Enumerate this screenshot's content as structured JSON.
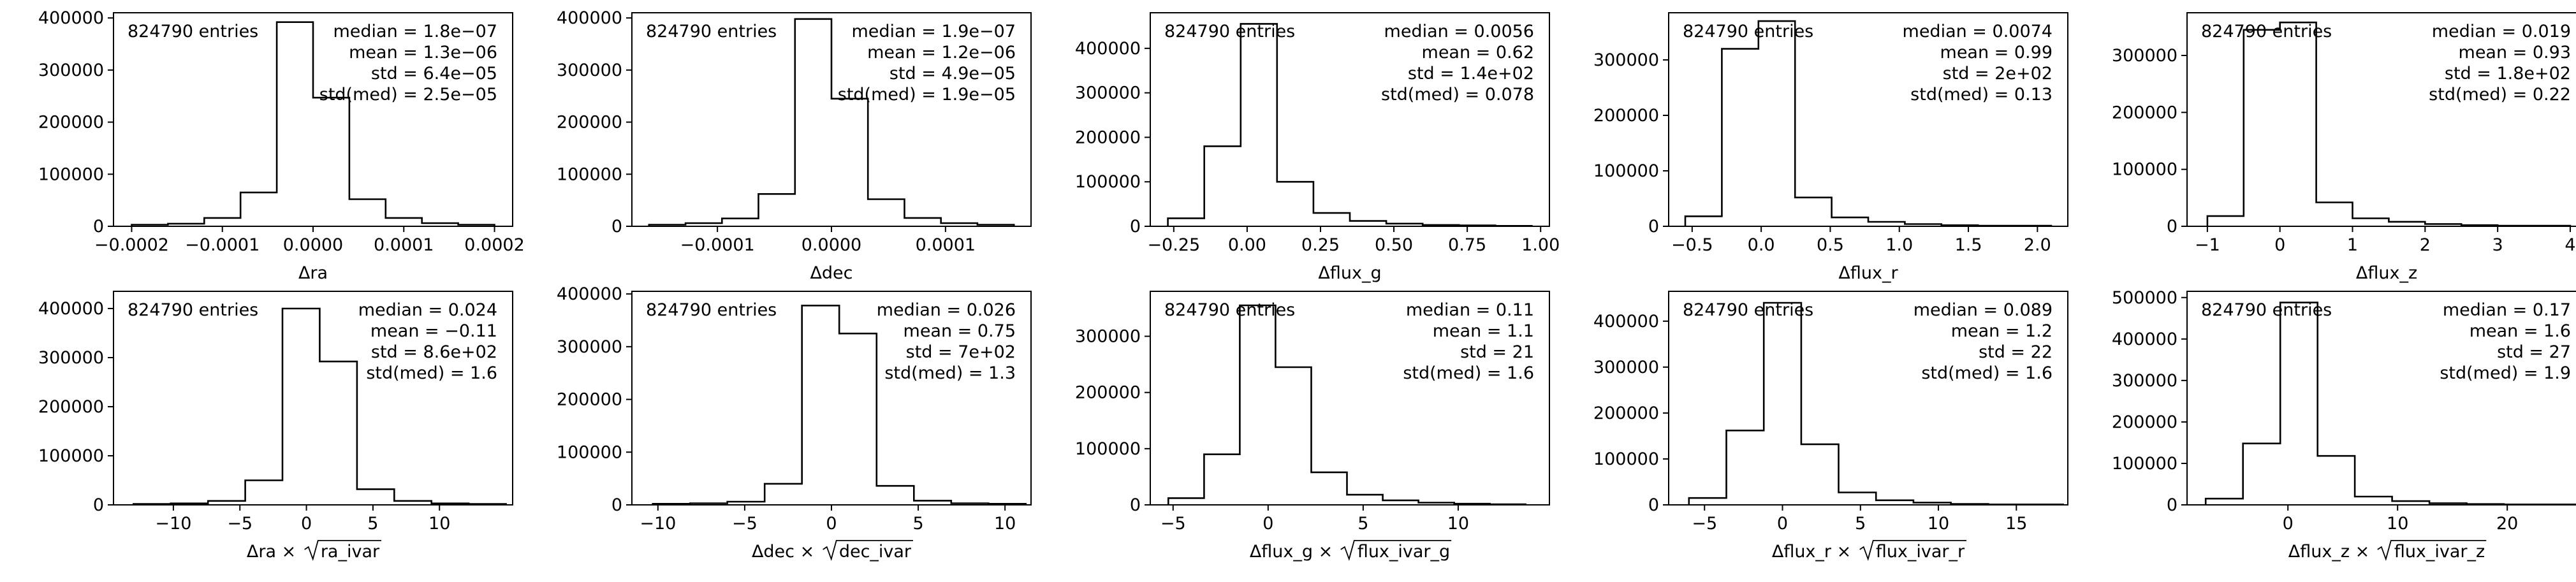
{
  "figure": {
    "background": "#ffffff",
    "line_color": "#000000"
  },
  "chart_data": [
    {
      "type": "histogram",
      "xlabel": "Δra",
      "entries_text": "824790 entries",
      "stats": [
        "median = 1.8e−07",
        "mean = 1.3e−06",
        "std = 6.4e−05",
        "std(med) = 2.5e−05"
      ],
      "xlim": [
        -0.00022,
        0.00022
      ],
      "ylim": [
        0,
        410000
      ],
      "xticks": [
        -0.0002,
        -0.0001,
        0.0,
        0.0001,
        0.0002
      ],
      "xtick_labels": [
        "−0.0002",
        "−0.0001",
        "0.0000",
        "0.0001",
        "0.0002"
      ],
      "yticks": [
        0,
        100000,
        200000,
        300000,
        400000
      ],
      "ytick_labels": [
        "0",
        "100000",
        "200000",
        "300000",
        "400000"
      ],
      "bin_edges": [
        -0.0002,
        -0.00016,
        -0.00012,
        -8e-05,
        -4e-05,
        0.0,
        4e-05,
        8e-05,
        0.00012,
        0.00016,
        0.0002
      ],
      "counts": [
        3000,
        5000,
        16000,
        65000,
        392000,
        247000,
        52000,
        16000,
        6000,
        3000
      ]
    },
    {
      "type": "histogram",
      "xlabel": "Δdec",
      "entries_text": "824790 entries",
      "stats": [
        "median = 1.9e−07",
        "mean = 1.2e−06",
        "std = 4.9e−05",
        "std(med) = 1.9e−05"
      ],
      "xlim": [
        -0.000175,
        0.000175
      ],
      "ylim": [
        0,
        410000
      ],
      "xticks": [
        -0.0001,
        0.0,
        0.0001
      ],
      "xtick_labels": [
        "−0.0001",
        "0.0000",
        "0.0001"
      ],
      "yticks": [
        0,
        100000,
        200000,
        300000,
        400000
      ],
      "ytick_labels": [
        "0",
        "100000",
        "200000",
        "300000",
        "400000"
      ],
      "bin_edges": [
        -0.00016,
        -0.000128,
        -9.6e-05,
        -6.4e-05,
        -3.2e-05,
        0.0,
        3.2e-05,
        6.4e-05,
        9.6e-05,
        0.000128,
        0.00016
      ],
      "counts": [
        3000,
        6000,
        15000,
        62000,
        398000,
        245000,
        52000,
        16000,
        6000,
        3000
      ]
    },
    {
      "type": "histogram",
      "xlabel": "Δflux_g",
      "entries_text": "824790 entries",
      "stats": [
        "median = 0.0056",
        "mean = 0.62",
        "std = 1.4e+02",
        "std(med) = 0.078"
      ],
      "xlim": [
        -0.33,
        1.03
      ],
      "ylim": [
        0,
        480000
      ],
      "xticks": [
        -0.25,
        0.0,
        0.25,
        0.5,
        0.75,
        1.0
      ],
      "xtick_labels": [
        "−0.25",
        "0.00",
        "0.25",
        "0.50",
        "0.75",
        "1.00"
      ],
      "yticks": [
        0,
        100000,
        200000,
        300000,
        400000
      ],
      "ytick_labels": [
        "0",
        "100000",
        "200000",
        "300000",
        "400000"
      ],
      "bin_edges": [
        -0.27,
        -0.146,
        -0.022,
        0.102,
        0.226,
        0.35,
        0.474,
        0.598,
        0.722,
        0.846,
        0.97
      ],
      "counts": [
        18000,
        180000,
        455000,
        100000,
        30000,
        12000,
        6000,
        3000,
        2000,
        1000
      ]
    },
    {
      "type": "histogram",
      "xlabel": "Δflux_r",
      "entries_text": "824790 entries",
      "stats": [
        "median = 0.0074",
        "mean = 0.99",
        "std = 2e+02",
        "std(med) = 0.13"
      ],
      "xlim": [
        -0.67,
        2.22
      ],
      "ylim": [
        0,
        385000
      ],
      "xticks": [
        -0.5,
        0.0,
        0.5,
        1.0,
        1.5,
        2.0
      ],
      "xtick_labels": [
        "−0.5",
        "0.0",
        "0.5",
        "1.0",
        "1.5",
        "2.0"
      ],
      "yticks": [
        0,
        100000,
        200000,
        300000
      ],
      "ytick_labels": [
        "0",
        "100000",
        "200000",
        "300000"
      ],
      "bin_edges": [
        -0.55,
        -0.285,
        -0.02,
        0.245,
        0.51,
        0.775,
        1.04,
        1.305,
        1.57,
        1.835,
        2.1
      ],
      "counts": [
        18000,
        320000,
        370000,
        52000,
        16000,
        8000,
        4000,
        2000,
        1000,
        1000
      ]
    },
    {
      "type": "histogram",
      "xlabel": "Δflux_z",
      "entries_text": "824790 entries",
      "stats": [
        "median = 0.019",
        "mean = 0.93",
        "std = 1.8e+02",
        "std(med) = 0.22"
      ],
      "xlim": [
        -1.28,
        4.22
      ],
      "ylim": [
        0,
        375000
      ],
      "xticks": [
        -1,
        0,
        1,
        2,
        3,
        4
      ],
      "xtick_labels": [
        "−1",
        "0",
        "1",
        "2",
        "3",
        "4"
      ],
      "yticks": [
        0,
        100000,
        200000,
        300000
      ],
      "ytick_labels": [
        "0",
        "100000",
        "200000",
        "300000"
      ],
      "bin_edges": [
        -1.0,
        -0.5,
        0.0,
        0.5,
        1.0,
        1.5,
        2.0,
        2.5,
        3.0,
        3.5,
        4.0
      ],
      "counts": [
        18000,
        345000,
        358000,
        42000,
        14000,
        8000,
        4000,
        2000,
        1000,
        1000
      ]
    },
    {
      "type": "histogram",
      "xlabel": "Δra × √ra_ivar",
      "xlabel_parts": [
        "Δra × ",
        "ra_ivar"
      ],
      "entries_text": "824790 entries",
      "stats": [
        "median = 0.024",
        "mean = −0.11",
        "std = 8.6e+02",
        "std(med) = 1.6"
      ],
      "xlim": [
        -14.5,
        15.5
      ],
      "ylim": [
        0,
        435000
      ],
      "xticks": [
        -10,
        -5,
        0,
        5,
        10
      ],
      "xtick_labels": [
        "−10",
        "−5",
        "0",
        "5",
        "10"
      ],
      "yticks": [
        0,
        100000,
        200000,
        300000,
        400000
      ],
      "ytick_labels": [
        "0",
        "100000",
        "200000",
        "300000",
        "400000"
      ],
      "bin_edges": [
        -13.0,
        -10.2,
        -7.4,
        -4.6,
        -1.8,
        1.0,
        3.8,
        6.6,
        9.4,
        12.2,
        15.0
      ],
      "counts": [
        2000,
        3000,
        8000,
        50000,
        400000,
        292000,
        32000,
        8000,
        3000,
        2000
      ]
    },
    {
      "type": "histogram",
      "xlabel": "Δdec × √dec_ivar",
      "xlabel_parts": [
        "Δdec × ",
        "dec_ivar"
      ],
      "entries_text": "824790 entries",
      "stats": [
        "median = 0.026",
        "mean = 0.75",
        "std = 7e+02",
        "std(med) = 1.3"
      ],
      "xlim": [
        -11.5,
        11.5
      ],
      "ylim": [
        0,
        405000
      ],
      "xticks": [
        -10,
        -5,
        0,
        5,
        10
      ],
      "xtick_labels": [
        "−10",
        "−5",
        "0",
        "5",
        "10"
      ],
      "yticks": [
        0,
        100000,
        200000,
        300000,
        400000
      ],
      "ytick_labels": [
        "0",
        "100000",
        "200000",
        "300000",
        "400000"
      ],
      "bin_edges": [
        -10.3,
        -8.15,
        -6.0,
        -3.85,
        -1.7,
        0.45,
        2.6,
        4.75,
        6.9,
        9.05,
        11.2
      ],
      "counts": [
        2000,
        3000,
        6000,
        40000,
        378000,
        325000,
        36000,
        8000,
        3000,
        2000
      ]
    },
    {
      "type": "histogram",
      "xlabel": "Δflux_g × √flux_ivar_g",
      "xlabel_parts": [
        "Δflux_g × ",
        "flux_ivar_g"
      ],
      "entries_text": "824790 entries",
      "stats": [
        "median = 0.11",
        "mean = 1.1",
        "std = 21",
        "std(med) = 1.6"
      ],
      "xlim": [
        -6.2,
        14.8
      ],
      "ylim": [
        0,
        380000
      ],
      "xticks": [
        -5,
        0,
        5,
        10
      ],
      "xtick_labels": [
        "−5",
        "0",
        "5",
        "10"
      ],
      "yticks": [
        0,
        100000,
        200000,
        300000
      ],
      "ytick_labels": [
        "0",
        "100000",
        "200000",
        "300000"
      ],
      "bin_edges": [
        -5.25,
        -3.37,
        -1.49,
        0.39,
        2.27,
        4.15,
        6.03,
        7.91,
        9.79,
        11.67,
        13.55
      ],
      "counts": [
        12000,
        90000,
        355000,
        245000,
        58000,
        18000,
        8000,
        4000,
        2000,
        1000
      ]
    },
    {
      "type": "histogram",
      "xlabel": "Δflux_r × √flux_ivar_r",
      "xlabel_parts": [
        "Δflux_r × ",
        "flux_ivar_r"
      ],
      "entries_text": "824790 entries",
      "stats": [
        "median = 0.089",
        "mean = 1.2",
        "std = 22",
        "std(med) = 1.6"
      ],
      "xlim": [
        -7.3,
        18.3
      ],
      "ylim": [
        0,
        465000
      ],
      "xticks": [
        -5,
        0,
        5,
        10,
        15
      ],
      "xtick_labels": [
        "−5",
        "0",
        "5",
        "10",
        "15"
      ],
      "yticks": [
        0,
        100000,
        200000,
        300000,
        400000
      ],
      "ytick_labels": [
        "0",
        "100000",
        "200000",
        "300000",
        "400000"
      ],
      "bin_edges": [
        -6.0,
        -3.6,
        -1.2,
        1.2,
        3.6,
        6.0,
        8.4,
        10.8,
        13.2,
        15.6,
        18.0
      ],
      "counts": [
        15000,
        162000,
        440000,
        132000,
        27000,
        10000,
        5000,
        2000,
        1000,
        1000
      ]
    },
    {
      "type": "histogram",
      "xlabel": "Δflux_z × √flux_ivar_z",
      "xlabel_parts": [
        "Δflux_z × ",
        "flux_ivar_z"
      ],
      "entries_text": "824790 entries",
      "stats": [
        "median = 0.17",
        "mean = 1.6",
        "std = 27",
        "std(med) = 1.9"
      ],
      "xlim": [
        -9.2,
        27.2
      ],
      "ylim": [
        0,
        515000
      ],
      "xticks": [
        0,
        10,
        20
      ],
      "xtick_labels": [
        "0",
        "10",
        "20"
      ],
      "yticks": [
        0,
        100000,
        200000,
        300000,
        400000,
        500000
      ],
      "ytick_labels": [
        "0",
        "100000",
        "200000",
        "300000",
        "400000",
        "500000"
      ],
      "bin_edges": [
        -7.5,
        -4.1,
        -0.7,
        2.7,
        6.1,
        9.5,
        12.9,
        16.3,
        19.7,
        23.1,
        26.5
      ],
      "counts": [
        15000,
        148000,
        488000,
        118000,
        20000,
        9000,
        4000,
        2000,
        1000,
        1000
      ]
    }
  ]
}
